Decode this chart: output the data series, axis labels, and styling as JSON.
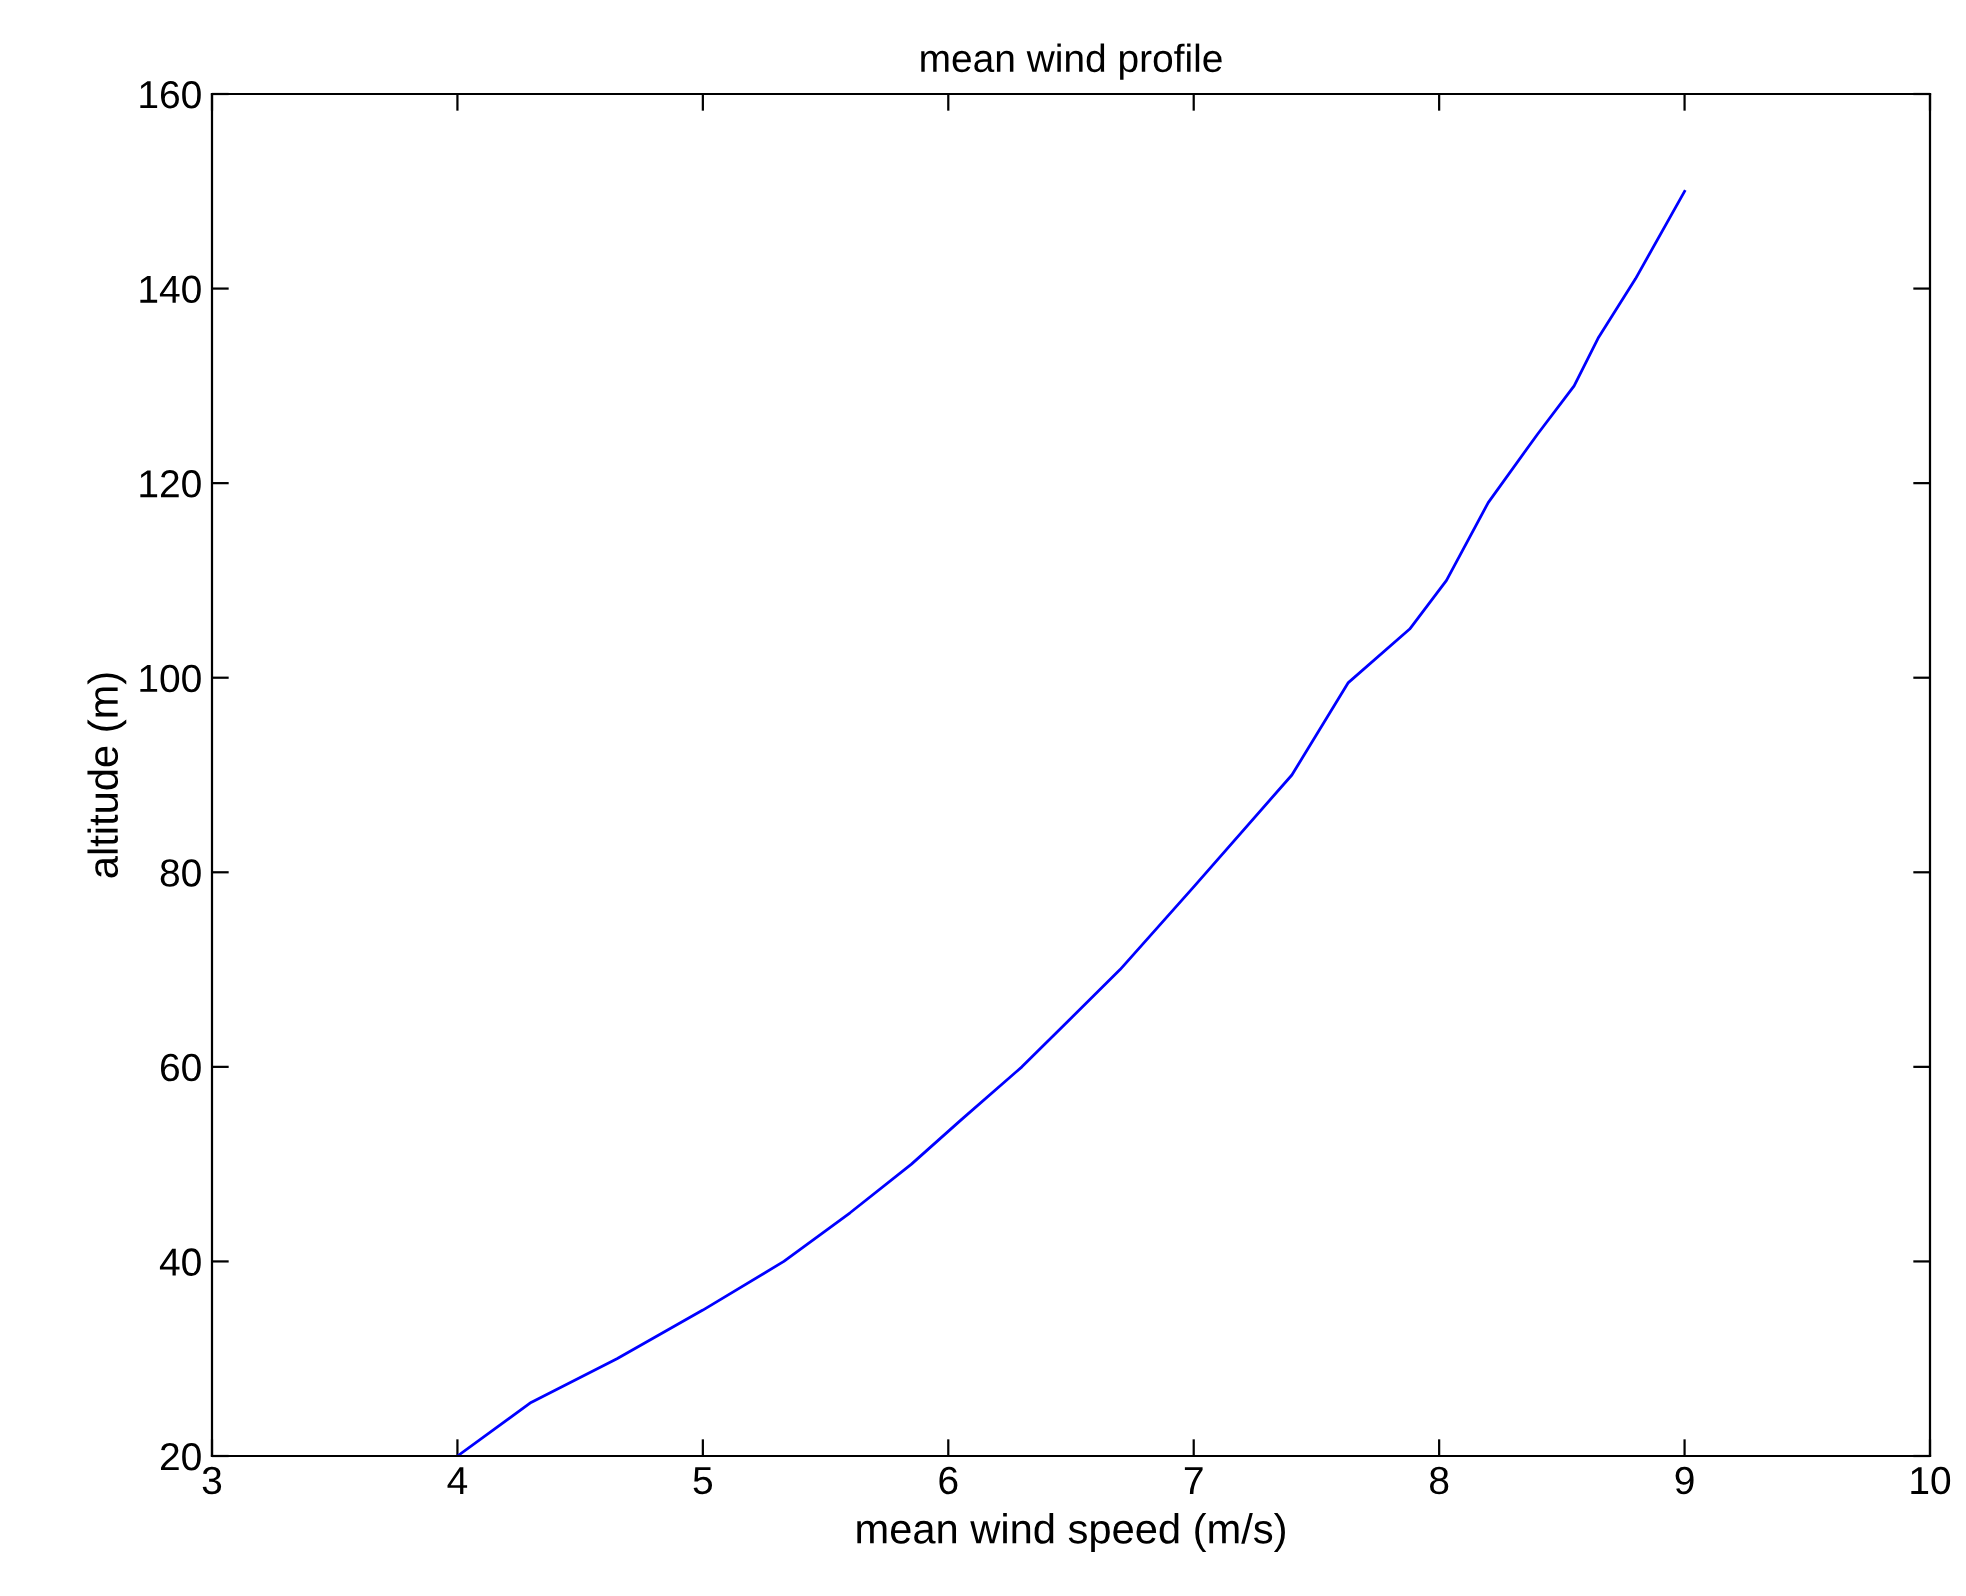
{
  "chart_data": {
    "type": "line",
    "title": "mean wind profile",
    "xlabel": "mean wind speed (m/s)",
    "ylabel": "altitude (m)",
    "x": [
      4.0,
      4.3,
      4.65,
      5.0,
      5.33,
      5.6,
      5.85,
      6.05,
      6.3,
      6.5,
      6.7,
      7.0,
      7.4,
      7.63,
      7.88,
      8.03,
      8.2,
      8.4,
      8.55,
      8.65,
      8.8,
      9.0
    ],
    "series": [
      {
        "color": "#0000ff",
        "values": [
          20,
          25.5,
          30,
          35,
          40,
          45,
          50,
          54.5,
          60,
          65,
          70,
          78.5,
          90,
          99.5,
          105,
          110,
          118,
          125,
          130,
          135,
          141,
          150
        ]
      }
    ],
    "xlim": [
      3,
      10
    ],
    "xticks": [
      3,
      4,
      5,
      6,
      7,
      8,
      9,
      10
    ],
    "ylim": [
      20,
      160
    ],
    "yticks": [
      20,
      40,
      60,
      80,
      100,
      120,
      140,
      160
    ],
    "grid": false,
    "legend": false,
    "marker": "none",
    "line_style": "solid"
  }
}
